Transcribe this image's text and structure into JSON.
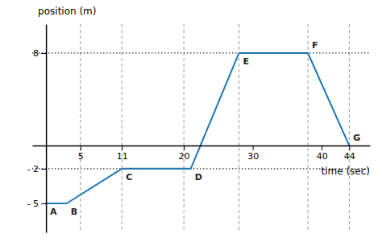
{
  "chart_data": {
    "type": "line",
    "xlabel": "time (sec)",
    "ylabel": "position (m)",
    "x": [
      0,
      3,
      11,
      21,
      28,
      38,
      44
    ],
    "values": [
      -5,
      -5,
      -2,
      -2,
      8,
      8,
      0
    ],
    "point_labels": [
      "A",
      "B",
      "C",
      "D",
      "E",
      "F",
      "G"
    ],
    "xlim": [
      -2,
      47
    ],
    "ylim": [
      -7.5,
      10.5
    ],
    "xticks": [
      5,
      11,
      20,
      30,
      40,
      44
    ],
    "yticks": [
      {
        "value": -5,
        "label": "- 5"
      },
      {
        "value": -2,
        "label": "- 2"
      },
      {
        "value": 8,
        "label": "8"
      }
    ],
    "vlines": [
      5,
      11,
      20,
      28,
      38,
      44
    ],
    "hlines": [
      8,
      -2
    ]
  }
}
